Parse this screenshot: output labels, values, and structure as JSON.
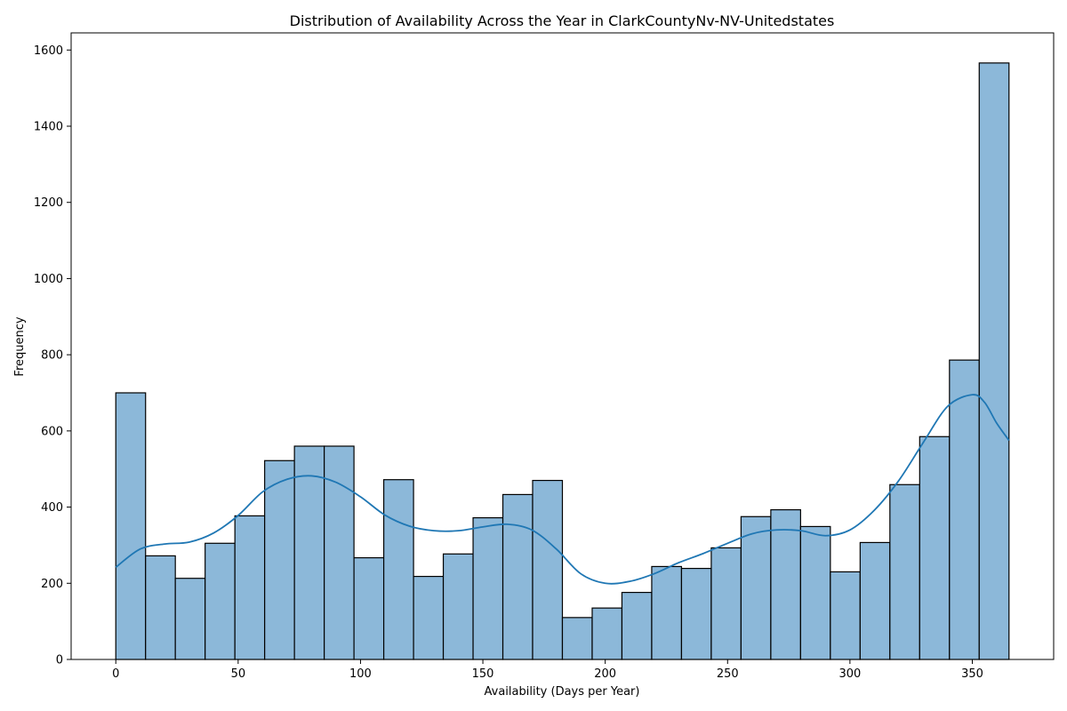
{
  "chart_data": {
    "type": "bar",
    "title": "Distribution of Availability Across the Year in ClarkCountyNv-NV-Unitedstates",
    "xlabel": "Availability (Days per Year)",
    "ylabel": "Frequency",
    "xlim": [
      -18.25,
      383.25
    ],
    "ylim": [
      0,
      1645
    ],
    "xticks": [
      0,
      50,
      100,
      150,
      200,
      250,
      300,
      350
    ],
    "yticks": [
      0,
      200,
      400,
      600,
      800,
      1000,
      1200,
      1400,
      1600
    ],
    "bin_edges": [
      0,
      12.17,
      24.33,
      36.5,
      48.67,
      60.83,
      73,
      85.17,
      97.33,
      109.5,
      121.67,
      133.83,
      146,
      158.17,
      170.33,
      182.5,
      194.67,
      206.83,
      219,
      231.17,
      243.33,
      255.5,
      267.67,
      279.83,
      292,
      304.17,
      316.33,
      328.5,
      340.67,
      352.83,
      365
    ],
    "values": [
      700,
      272,
      213,
      305,
      377,
      522,
      560,
      560,
      267,
      472,
      218,
      277,
      372,
      433,
      470,
      110,
      135,
      176,
      244,
      239,
      293,
      375,
      393,
      349,
      230,
      307,
      459,
      585,
      786,
      1566
    ],
    "kde": {
      "x": [
        0,
        10,
        20,
        30,
        40,
        50,
        60,
        70,
        80,
        90,
        100,
        110,
        120,
        130,
        140,
        150,
        160,
        170,
        180,
        190,
        200,
        210,
        220,
        230,
        240,
        250,
        260,
        270,
        280,
        290,
        300,
        310,
        320,
        330,
        340,
        350,
        355,
        360,
        365
      ],
      "y": [
        242,
        290,
        303,
        308,
        332,
        378,
        440,
        473,
        482,
        465,
        427,
        379,
        350,
        338,
        338,
        348,
        355,
        340,
        290,
        225,
        200,
        205,
        225,
        254,
        278,
        305,
        330,
        340,
        338,
        325,
        340,
        392,
        470,
        570,
        665,
        695,
        675,
        620,
        575
      ]
    },
    "bar_color": "#8cb8d9",
    "bar_edge_color": "#000000",
    "kde_color": "#1f77b4",
    "grid": false,
    "legend": "none"
  }
}
